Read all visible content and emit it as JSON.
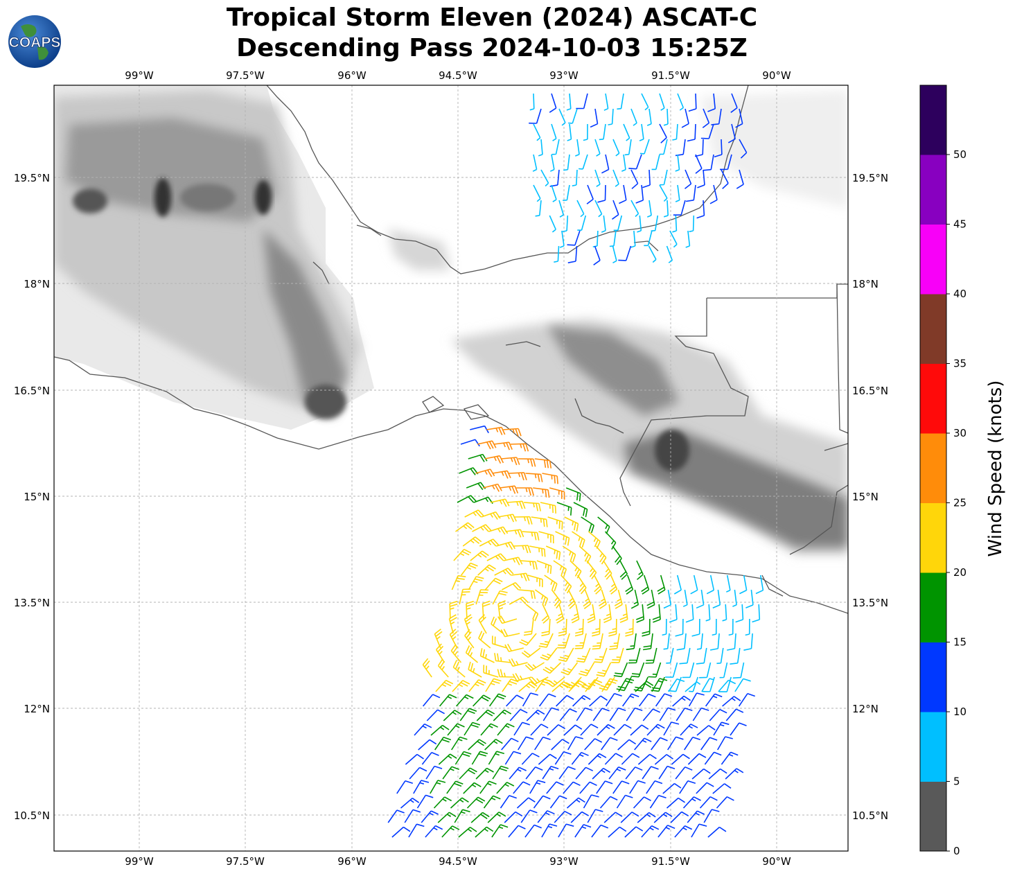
{
  "title": {
    "line1": "Tropical Storm Eleven (2024) ASCAT-C",
    "line2": "Descending Pass 2024-10-03 15:25Z"
  },
  "logo": {
    "text": "COAPS"
  },
  "map": {
    "lon_range": [
      -100.2,
      -89.0
    ],
    "lat_range": [
      9.96,
      20.78
    ],
    "lon_ticks": [
      "99°W",
      "97.5°W",
      "96°W",
      "94.5°W",
      "93°W",
      "91.5°W",
      "90°W"
    ],
    "lat_ticks": [
      "19.5°N",
      "18°N",
      "16.5°N",
      "15°N",
      "13.5°N",
      "12°N",
      "10.5°N"
    ],
    "gridlines": true,
    "terrain": "grayscale elevation shading over land",
    "coastline_color": "#555555"
  },
  "colorbar": {
    "label": "Wind Speed (knots)",
    "ticks": [
      "0",
      "5",
      "10",
      "15",
      "20",
      "25",
      "30",
      "35",
      "40",
      "45",
      "50"
    ],
    "bins": [
      {
        "range": "0-5",
        "color": "#595959"
      },
      {
        "range": "5-10",
        "color": "#00bfff"
      },
      {
        "range": "10-15",
        "color": "#0038ff"
      },
      {
        "range": "15-20",
        "color": "#009400"
      },
      {
        "range": "20-25",
        "color": "#ffd60a"
      },
      {
        "range": "25-30",
        "color": "#ff8c0a"
      },
      {
        "range": "30-35",
        "color": "#ff0a0a"
      },
      {
        "range": "35-40",
        "color": "#803a28"
      },
      {
        "range": "40-45",
        "color": "#f800f8"
      },
      {
        "range": "45-50",
        "color": "#8800c0"
      },
      {
        "range": "50+",
        "color": "#2d005d"
      }
    ]
  },
  "wind_barbs": {
    "description": "ASCAT-C scatterometer wind barbs",
    "north_swath": {
      "lon": [
        -93.4,
        -90.4
      ],
      "lat": [
        18.0,
        20.7
      ],
      "dominant_speed_kt": "5-15",
      "direction_from": "north"
    },
    "south_swath": {
      "lon": [
        -95.6,
        -90.6
      ],
      "lat": [
        10.0,
        16.3
      ],
      "max_speed_kt": "25-30",
      "circulation_center": {
        "lon": -93.4,
        "lat": 13.3
      }
    }
  }
}
